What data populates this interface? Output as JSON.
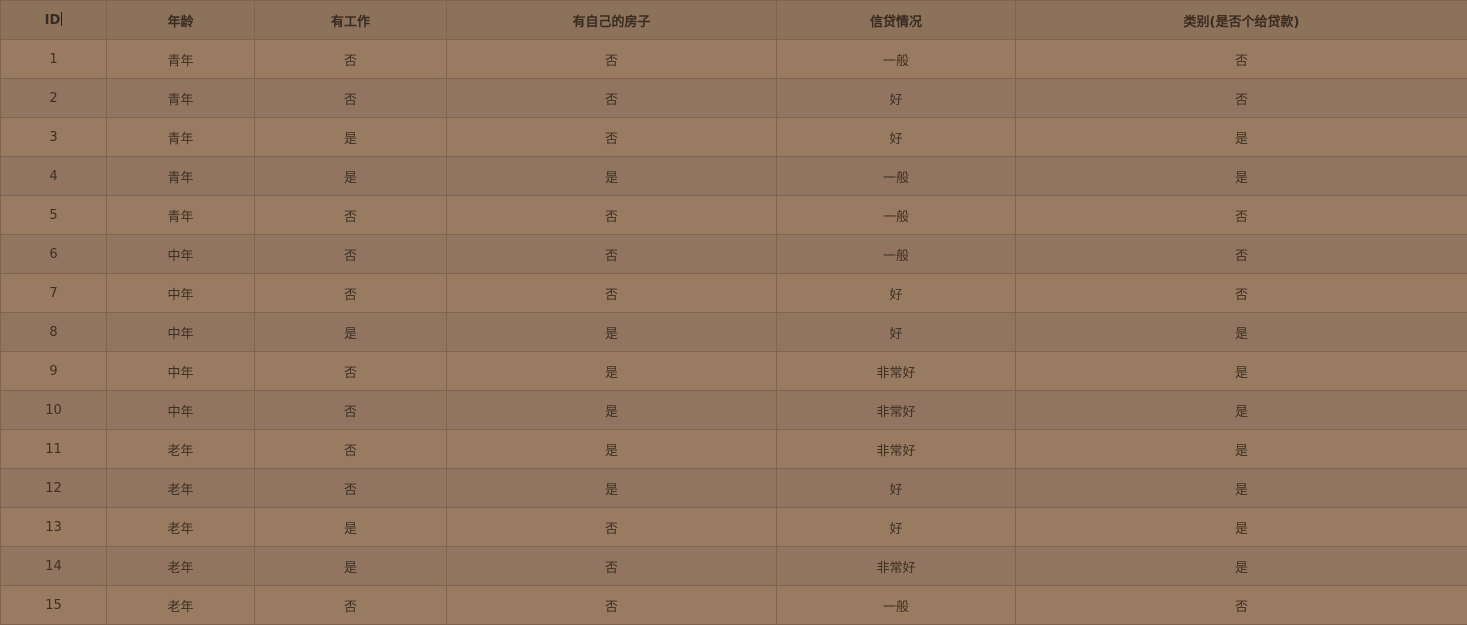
{
  "table": {
    "headers": [
      "ID",
      "年龄",
      "有工作",
      "有自己的房子",
      "信贷情况",
      "类别(是否个给贷款)"
    ],
    "rows": [
      [
        "1",
        "青年",
        "否",
        "否",
        "一般",
        "否"
      ],
      [
        "2",
        "青年",
        "否",
        "否",
        "好",
        "否"
      ],
      [
        "3",
        "青年",
        "是",
        "否",
        "好",
        "是"
      ],
      [
        "4",
        "青年",
        "是",
        "是",
        "一般",
        "是"
      ],
      [
        "5",
        "青年",
        "否",
        "否",
        "一般",
        "否"
      ],
      [
        "6",
        "中年",
        "否",
        "否",
        "一般",
        "否"
      ],
      [
        "7",
        "中年",
        "否",
        "否",
        "好",
        "否"
      ],
      [
        "8",
        "中年",
        "是",
        "是",
        "好",
        "是"
      ],
      [
        "9",
        "中年",
        "否",
        "是",
        "非常好",
        "是"
      ],
      [
        "10",
        "中年",
        "否",
        "是",
        "非常好",
        "是"
      ],
      [
        "11",
        "老年",
        "否",
        "是",
        "非常好",
        "是"
      ],
      [
        "12",
        "老年",
        "否",
        "是",
        "好",
        "是"
      ],
      [
        "13",
        "老年",
        "是",
        "否",
        "好",
        "是"
      ],
      [
        "14",
        "老年",
        "是",
        "否",
        "非常好",
        "是"
      ],
      [
        "15",
        "老年",
        "否",
        "否",
        "一般",
        "否"
      ]
    ]
  },
  "colors": {
    "background": "#987b62",
    "header_background": "#8c715b",
    "border": "#7f644f",
    "text": "#3e2f23"
  }
}
